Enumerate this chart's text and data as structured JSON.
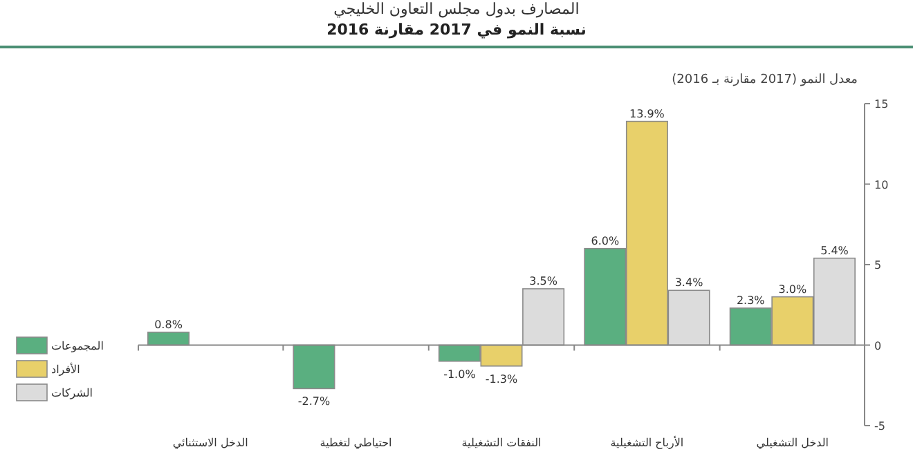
{
  "chart_data": {
    "type": "bar",
    "title": "المصارف بدول مجلس التعاون الخليجي",
    "subtitle": "نسبة النمو في 2017 مقارنة 2016",
    "ylabel": "معدل النمو (2017 مقارنة بـ 2016)",
    "categories": [
      "الدخل الاستثنائي",
      "احتياطي لتغطية",
      "النفقات التشغيلية",
      "الأرباح التشغيلية",
      "الدخل التشغيلي"
    ],
    "series": [
      {
        "name": "المجموعات",
        "color": "#5aaf80",
        "values": [
          0.8,
          -2.7,
          -1.0,
          6.0,
          2.3
        ],
        "value_labels": [
          "0.8%",
          "-2.7%",
          "-1.0%",
          "6.0%",
          "2.3%"
        ]
      },
      {
        "name": "الأفراد",
        "color": "#e8d06a",
        "values": [
          null,
          null,
          -1.3,
          13.9,
          3.0
        ],
        "value_labels": [
          null,
          null,
          "-1.3%",
          "13.9%",
          "3.0%"
        ]
      },
      {
        "name": "الشركات",
        "color": "#dcdcdc",
        "values": [
          null,
          null,
          3.5,
          3.4,
          5.4
        ],
        "value_labels": [
          null,
          null,
          "3.5%",
          "3.4%",
          "5.4%"
        ]
      }
    ],
    "ylim": [
      -5,
      15
    ],
    "yticks": [
      -5,
      0,
      5,
      10,
      15
    ],
    "legend": "left"
  }
}
